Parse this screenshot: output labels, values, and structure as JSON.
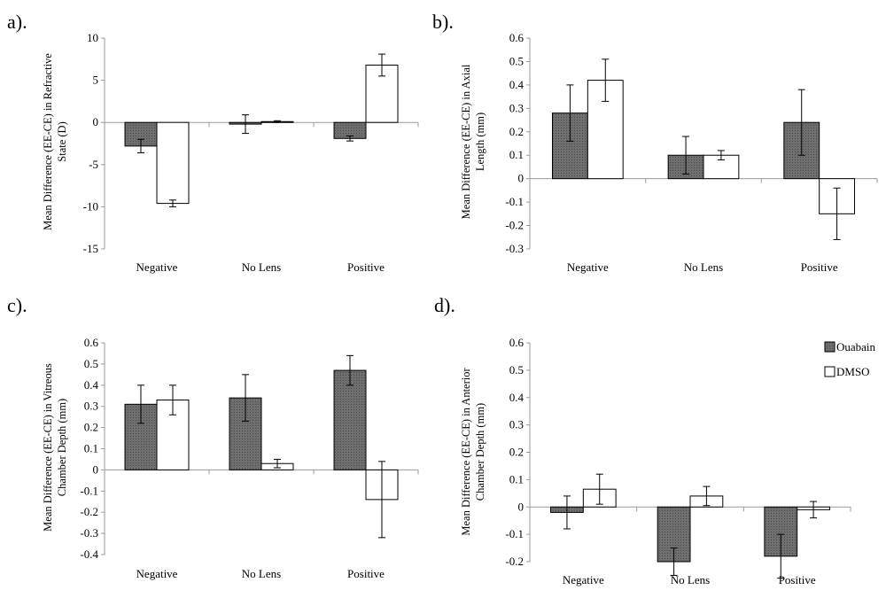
{
  "series_style": {
    "Ouabain": {
      "fill": "#6e6e6e",
      "pattern": true
    },
    "DMSO": {
      "fill": "#ffffff",
      "pattern": false
    }
  },
  "legend": {
    "entries": [
      "Ouabain",
      "DMSO"
    ],
    "placement": "right of panel d"
  },
  "chart_data": [
    {
      "panel": "a).",
      "type": "bar",
      "ylabel": [
        "Mean Difference (EE-CE) in Refractive",
        "State (D)"
      ],
      "categories": [
        "Negative",
        "No Lens",
        "Positive"
      ],
      "ylim": [
        -15,
        10
      ],
      "yticks": [
        10,
        5,
        0,
        -5,
        -10,
        -15
      ],
      "series": [
        {
          "name": "Ouabain",
          "values": [
            -2.8,
            -0.2,
            -1.9
          ],
          "err": [
            0.8,
            1.1,
            0.3
          ]
        },
        {
          "name": "DMSO",
          "values": [
            -9.6,
            0.1,
            6.8
          ],
          "err": [
            0.4,
            0.1,
            1.3
          ]
        }
      ]
    },
    {
      "panel": "b).",
      "type": "bar",
      "ylabel": [
        "Mean Difference (EE-CE) in Axial",
        "Length (mm)"
      ],
      "categories": [
        "Negative",
        "No Lens",
        "Positive"
      ],
      "ylim": [
        -0.3,
        0.6
      ],
      "yticks": [
        0.6,
        0.5,
        0.4,
        0.3,
        0.2,
        0.1,
        0,
        -0.1,
        -0.2,
        -0.3
      ],
      "series": [
        {
          "name": "Ouabain",
          "values": [
            0.28,
            0.1,
            0.24
          ],
          "err": [
            0.12,
            0.08,
            0.14
          ]
        },
        {
          "name": "DMSO",
          "values": [
            0.42,
            0.1,
            -0.15
          ],
          "err": [
            0.09,
            0.02,
            0.11
          ]
        }
      ]
    },
    {
      "panel": "c).",
      "type": "bar",
      "ylabel": [
        "Mean Difference (EE-CE) in Vitreous",
        "Chamber Depth (mm)"
      ],
      "categories": [
        "Negative",
        "No Lens",
        "Positive"
      ],
      "ylim": [
        -0.4,
        0.6
      ],
      "yticks": [
        0.6,
        0.5,
        0.4,
        0.3,
        0.2,
        0.1,
        0,
        -0.1,
        -0.2,
        -0.3,
        -0.4
      ],
      "series": [
        {
          "name": "Ouabain",
          "values": [
            0.31,
            0.34,
            0.47
          ],
          "err": [
            0.09,
            0.11,
            0.07
          ]
        },
        {
          "name": "DMSO",
          "values": [
            0.33,
            0.03,
            -0.14
          ],
          "err": [
            0.07,
            0.02,
            0.18
          ]
        }
      ]
    },
    {
      "panel": "d).",
      "type": "bar",
      "ylabel": [
        "Mean Difference (EE-CE) in Anterior",
        "Chamber Depth (mm)"
      ],
      "categories": [
        "Negative",
        "No Lens",
        "Positive"
      ],
      "ylim": [
        -0.2,
        0.6
      ],
      "yticks": [
        0.6,
        0.5,
        0.4,
        0.3,
        0.2,
        0.1,
        0,
        -0.1,
        -0.2
      ],
      "series": [
        {
          "name": "Ouabain",
          "values": [
            -0.02,
            -0.2,
            -0.18
          ],
          "err": [
            0.06,
            0.05,
            0.08
          ]
        },
        {
          "name": "DMSO",
          "values": [
            0.065,
            0.04,
            -0.01
          ],
          "err": [
            0.055,
            0.035,
            0.03
          ]
        }
      ]
    }
  ]
}
